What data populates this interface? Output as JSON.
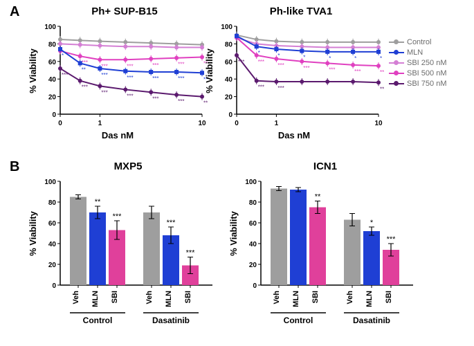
{
  "panelA": {
    "label": "A",
    "ylabel": "% Viability",
    "xlabel": "Das nM",
    "xticks": [
      0,
      1,
      10
    ],
    "yticks": [
      0,
      20,
      40,
      60,
      80,
      100
    ],
    "charts": [
      {
        "title": "Ph+ SUP-B15",
        "series": {
          "control": {
            "color": "#9e9e9e",
            "y": [
              85,
              84,
              83,
              82,
              81,
              80,
              79
            ],
            "sig": [
              null,
              null,
              null,
              null,
              null,
              null,
              null
            ]
          },
          "mln": {
            "color": "#1f3fd4",
            "y": [
              74,
              58,
              52,
              49,
              48,
              48,
              47
            ],
            "sig": [
              "*",
              "**",
              "***",
              "***",
              "***",
              "***",
              "***"
            ]
          },
          "sbi250": {
            "color": "#d47fd4",
            "y": [
              80,
              79,
              78,
              77,
              77,
              76,
              76
            ],
            "sig": [
              null,
              null,
              null,
              null,
              null,
              null,
              null
            ]
          },
          "sbi500": {
            "color": "#e040c0",
            "y": [
              72,
              66,
              62,
              62,
              63,
              64,
              65
            ],
            "sig": [
              null,
              "***",
              "***",
              "***",
              "***",
              "***",
              "***"
            ]
          },
          "sbi750": {
            "color": "#5b1a6e",
            "y": [
              52,
              38,
              32,
              28,
              25,
              22,
              20
            ],
            "sig": [
              "***",
              "***",
              "***",
              "***",
              "***",
              "***",
              "***"
            ]
          }
        }
      },
      {
        "title": "Ph-like TVA1",
        "series": {
          "control": {
            "color": "#9e9e9e",
            "y": [
              90,
              85,
              83,
              82,
              82,
              82,
              82
            ],
            "sig": [
              null,
              null,
              null,
              null,
              null,
              null,
              null
            ]
          },
          "mln": {
            "color": "#1f3fd4",
            "y": [
              89,
              77,
              74,
              72,
              71,
              71,
              71
            ],
            "sig": [
              null,
              "*",
              "*",
              "*",
              "*",
              "*",
              "*"
            ]
          },
          "sbi250": {
            "color": "#d47fd4",
            "y": [
              87,
              80,
              78,
              77,
              76,
              76,
              76
            ],
            "sig": [
              null,
              null,
              null,
              null,
              null,
              null,
              null
            ]
          },
          "sbi500": {
            "color": "#e040c0",
            "y": [
              87,
              67,
              63,
              60,
              58,
              56,
              55
            ],
            "sig": [
              null,
              "***",
              "***",
              "***",
              "***",
              "***",
              "***"
            ]
          },
          "sbi750": {
            "color": "#5b1a6e",
            "y": [
              67,
              38,
              37,
              37,
              37,
              37,
              36
            ],
            "sig": [
              "***",
              "***",
              "***",
              null,
              null,
              null,
              "***"
            ]
          }
        }
      }
    ],
    "legend": [
      {
        "key": "control",
        "label": "Control",
        "color": "#9e9e9e"
      },
      {
        "key": "mln",
        "label": "MLN",
        "color": "#1f3fd4"
      },
      {
        "key": "sbi250",
        "label": "SBI 250 nM",
        "color": "#d47fd4"
      },
      {
        "key": "sbi500",
        "label": "SBI 500 nM",
        "color": "#e040c0"
      },
      {
        "key": "sbi750",
        "label": "SBI 750 nM",
        "color": "#5b1a6e"
      }
    ]
  },
  "panelB": {
    "label": "B",
    "ylabel": "% Viability",
    "yticks": [
      0,
      20,
      40,
      60,
      80,
      100
    ],
    "groups": [
      "Control",
      "Dasatinib"
    ],
    "cats": [
      "Veh",
      "MLN",
      "SBI"
    ],
    "colors": {
      "Veh": "#9e9e9e",
      "MLN": "#1f3fd4",
      "SBI": "#e0409b"
    },
    "charts": [
      {
        "title": "MXP5",
        "bars": {
          "Control": {
            "Veh": {
              "v": 85,
              "e": 2,
              "sig": null
            },
            "MLN": {
              "v": 70,
              "e": 6,
              "sig": "**"
            },
            "SBI": {
              "v": 53,
              "e": 9,
              "sig": "***"
            }
          },
          "Dasatinib": {
            "Veh": {
              "v": 70,
              "e": 6,
              "sig": null
            },
            "MLN": {
              "v": 48,
              "e": 8,
              "sig": "***"
            },
            "SBI": {
              "v": 19,
              "e": 8,
              "sig": "***"
            }
          }
        }
      },
      {
        "title": "ICN1",
        "bars": {
          "Control": {
            "Veh": {
              "v": 93,
              "e": 2,
              "sig": null
            },
            "MLN": {
              "v": 92,
              "e": 2,
              "sig": null
            },
            "SBI": {
              "v": 75,
              "e": 6,
              "sig": "**"
            }
          },
          "Dasatinib": {
            "Veh": {
              "v": 63,
              "e": 6,
              "sig": null
            },
            "MLN": {
              "v": 52,
              "e": 4,
              "sig": "*"
            },
            "SBI": {
              "v": 34,
              "e": 6,
              "sig": "***"
            }
          }
        }
      }
    ]
  }
}
